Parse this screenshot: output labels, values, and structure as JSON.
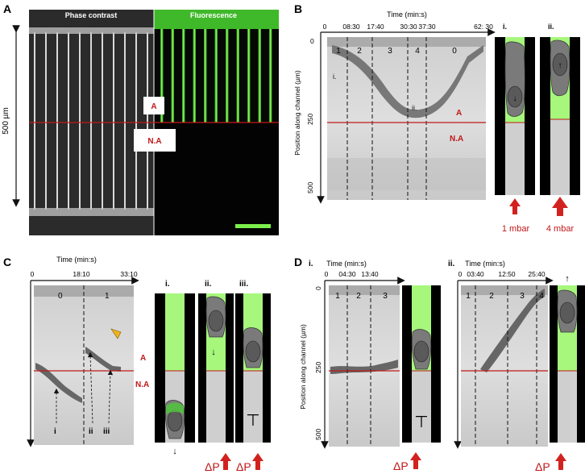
{
  "panels": {
    "A": {
      "letter": "A",
      "left_title": "Phase contrast",
      "right_title": "Fluorescence",
      "region_a": "A",
      "region_na": "N.A",
      "scale_label": "500 µm"
    },
    "B": {
      "letter": "B",
      "time_axis": "Time (min:s)",
      "ticks": [
        "0",
        "08:30",
        "17:40",
        "30:30",
        "37:30",
        "62: 30"
      ],
      "y_axis": "Position along channel (µm)",
      "y_ticks": [
        "0",
        "250",
        "500"
      ],
      "phases": [
        "1",
        "2",
        "3",
        "4",
        "0"
      ],
      "marks": [
        "i.",
        "ii."
      ],
      "region_a": "A",
      "region_na": "N.A",
      "insets": [
        "i.",
        "ii."
      ],
      "pressures": [
        "1 mbar",
        "4 mbar"
      ]
    },
    "C": {
      "letter": "C",
      "time_axis": "Time (min:s)",
      "ticks": [
        "0",
        "18:10",
        "33:10"
      ],
      "phases": [
        "0",
        "1"
      ],
      "region_a": "A",
      "region_na": "N.A",
      "events": [
        "i",
        "ii",
        "iii"
      ],
      "insets": [
        "i.",
        "ii.",
        "iii."
      ],
      "pressure": "ΔP"
    },
    "D": {
      "letter": "D",
      "sub_i": "i.",
      "sub_ii": "ii.",
      "time_axis": "Time (min:s)",
      "ticks_i": [
        "0",
        "04:30",
        "13:40"
      ],
      "ticks_ii": [
        "0",
        "03:40",
        "12:50",
        "25:40"
      ],
      "y_axis": "Position along channel (µm)",
      "y_ticks": [
        "0",
        "250",
        "500"
      ],
      "phases_i": [
        "1",
        "2",
        "3"
      ],
      "phases_ii": [
        "1",
        "2",
        "3",
        "4"
      ],
      "pressure": "ΔP"
    }
  },
  "colors": {
    "green": "#7cf04a",
    "red": "#cc1f1f",
    "cell": "#6a6a6a",
    "gray": "#d6d6d6"
  }
}
